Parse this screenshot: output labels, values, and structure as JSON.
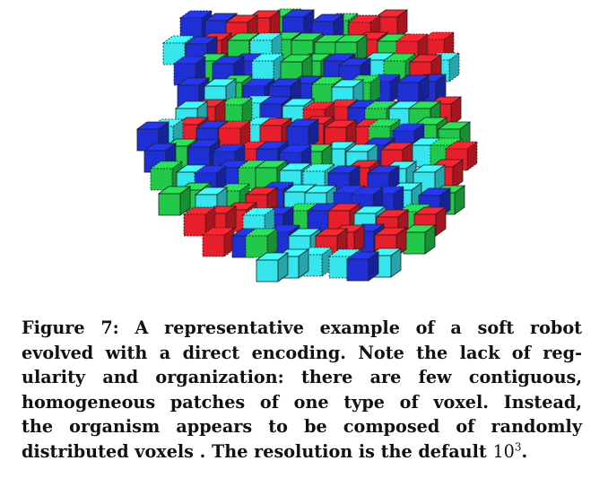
{
  "figure": {
    "image_alt": "Voxel soft robot composed of red, green, blue and cyan cubes",
    "voxel_colors": {
      "red": "#e81f2a",
      "green": "#21c84a",
      "blue": "#1f2fd6",
      "cyan": "#35e6ee",
      "outline": "#222222"
    },
    "caption_lines": [
      "Figure 7: A representative example of a soft robot",
      "evolved with a direct encoding. Note the lack of reg-",
      "ularity and organization: there are few contiguous,",
      "homogeneous patches of one type of voxel. Instead,",
      "the organism appears to be composed of randomly"
    ],
    "caption_last_prefix": "distributed voxels . The resolution is the default",
    "caption_last_base": "10",
    "caption_last_exponent": "3",
    "caption_last_suffix": "."
  }
}
